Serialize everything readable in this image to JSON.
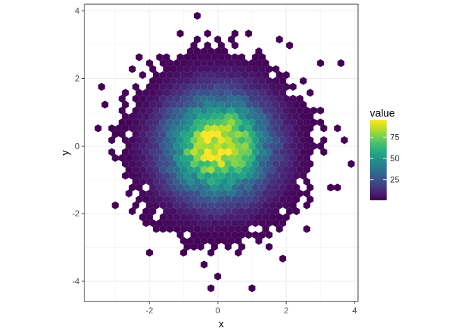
{
  "chart_data": {
    "type": "hexbin",
    "xlabel": "x",
    "ylabel": "y",
    "xlim": [
      -3.9,
      4.1
    ],
    "ylim": [
      -4.6,
      4.2
    ],
    "x_ticks": [
      -2,
      0,
      2,
      4
    ],
    "x_tick_labels": [
      "-2",
      "0",
      "2",
      "4"
    ],
    "y_ticks": [
      -4,
      -2,
      0,
      2,
      4
    ],
    "y_tick_labels": [
      "-4",
      "-2",
      "0",
      "2",
      "4"
    ],
    "grid": true,
    "hex_bin_width": 0.2,
    "colormap": "viridis",
    "legend": {
      "title": "value",
      "position": "right",
      "breaks": [
        25,
        50,
        75
      ],
      "break_labels": [
        "25",
        "50",
        "75"
      ],
      "min": 1,
      "max": 95
    },
    "density_model": {
      "peak": 95,
      "sigma_x": 1.0,
      "sigma_y": 1.0,
      "floor_value": 2
    },
    "hex_region": {
      "radius": 2.95,
      "x_min": -3.35,
      "x_max": 3.35,
      "y_min": -3.05,
      "y_max": 3.2
    },
    "hot_cells": [
      {
        "x": -0.2,
        "y": -0.1,
        "value": 95
      },
      {
        "x": 0.0,
        "y": -0.4,
        "value": 93
      },
      {
        "x": -0.1,
        "y": 0.45,
        "value": 88
      },
      {
        "x": 0.4,
        "y": 0.0,
        "value": 85
      },
      {
        "x": 0.2,
        "y": 0.2,
        "value": 86
      },
      {
        "x": 0.6,
        "y": 0.3,
        "value": 80
      }
    ],
    "outlier_cells": [
      {
        "x": -0.6,
        "y": 3.8,
        "value": 1
      },
      {
        "x": -1.1,
        "y": 3.4,
        "value": 1
      },
      {
        "x": -0.4,
        "y": 3.4,
        "value": 1
      },
      {
        "x": 0.4,
        "y": 3.4,
        "value": 1
      },
      {
        "x": 0.8,
        "y": 3.4,
        "value": 1
      },
      {
        "x": 1.8,
        "y": 3.2,
        "value": 1
      },
      {
        "x": 2.1,
        "y": 2.9,
        "value": 1
      },
      {
        "x": 3.0,
        "y": 2.4,
        "value": 1
      },
      {
        "x": 3.5,
        "y": 2.4,
        "value": 1
      },
      {
        "x": -2.4,
        "y": 2.7,
        "value": 1
      },
      {
        "x": -2.5,
        "y": 2.3,
        "value": 1
      },
      {
        "x": -2.0,
        "y": 2.4,
        "value": 1
      },
      {
        "x": -3.4,
        "y": 1.8,
        "value": 1
      },
      {
        "x": -3.3,
        "y": 1.3,
        "value": 1
      },
      {
        "x": -3.5,
        "y": 0.6,
        "value": 1
      },
      {
        "x": -3.2,
        "y": 0.6,
        "value": 1
      },
      {
        "x": 3.1,
        "y": 0.6,
        "value": 1
      },
      {
        "x": 3.5,
        "y": 0.6,
        "value": 1
      },
      {
        "x": 3.1,
        "y": -0.1,
        "value": 1
      },
      {
        "x": 3.6,
        "y": 0.1,
        "value": 1
      },
      {
        "x": 3.9,
        "y": -0.6,
        "value": 1
      },
      {
        "x": 3.2,
        "y": -1.2,
        "value": 1
      },
      {
        "x": 3.5,
        "y": -1.2,
        "value": 1
      },
      {
        "x": -3.0,
        "y": -1.7,
        "value": 1
      },
      {
        "x": -2.6,
        "y": -2.0,
        "value": 1
      },
      {
        "x": -2.1,
        "y": -3.1,
        "value": 1
      },
      {
        "x": -1.1,
        "y": -3.1,
        "value": 1
      },
      {
        "x": -0.3,
        "y": -3.2,
        "value": 1
      },
      {
        "x": 0.6,
        "y": -3.1,
        "value": 1
      },
      {
        "x": 1.5,
        "y": -3.0,
        "value": 1
      },
      {
        "x": 2.0,
        "y": -3.3,
        "value": 1
      },
      {
        "x": -0.4,
        "y": -3.5,
        "value": 1
      },
      {
        "x": 0.0,
        "y": -3.8,
        "value": 1
      },
      {
        "x": -0.2,
        "y": -4.2,
        "value": 1
      },
      {
        "x": 1.0,
        "y": -4.2,
        "value": 1
      },
      {
        "x": 2.6,
        "y": -2.4,
        "value": 1
      }
    ],
    "hole_cells": [
      {
        "x": -1.7,
        "y": -2.0
      },
      {
        "x": 2.2,
        "y": 1.6
      },
      {
        "x": -2.2,
        "y": -1.2
      },
      {
        "x": 1.2,
        "y": -2.4
      },
      {
        "x": 2.4,
        "y": -1.0
      },
      {
        "x": -1.0,
        "y": 2.8
      },
      {
        "x": 2.6,
        "y": 2.0
      },
      {
        "x": -2.7,
        "y": 0.4
      }
    ]
  }
}
